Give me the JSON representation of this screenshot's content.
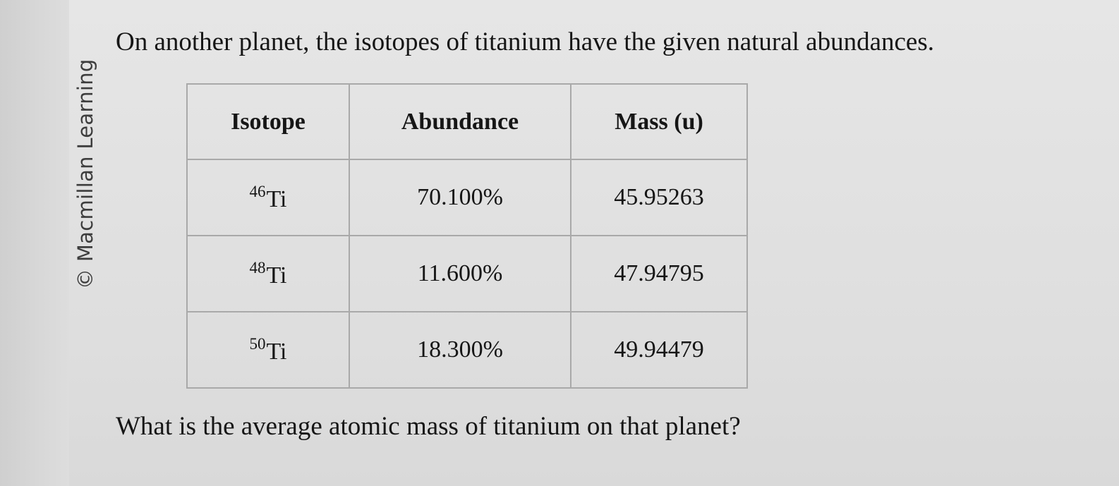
{
  "watermark": "© Macmillan Learning",
  "question": "On another planet, the isotopes of titanium have the given natural abundances.",
  "table": {
    "headers": [
      "Isotope",
      "Abundance",
      "Mass (u)"
    ],
    "rows": [
      {
        "mass_number": "46",
        "symbol": "Ti",
        "abundance": "70.100%",
        "mass": "45.95263"
      },
      {
        "mass_number": "48",
        "symbol": "Ti",
        "abundance": "11.600%",
        "mass": "47.94795"
      },
      {
        "mass_number": "50",
        "symbol": "Ti",
        "abundance": "18.300%",
        "mass": "49.94479"
      }
    ]
  },
  "followup": "What is the average atomic mass of titanium on that planet?"
}
